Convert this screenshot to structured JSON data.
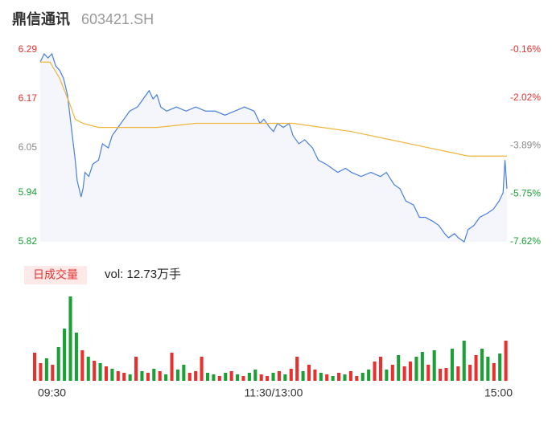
{
  "chart_data": {
    "type": "intraday",
    "title": "鼎信通讯",
    "subtitle": "603421.SH",
    "xlim": [
      0,
      240
    ],
    "xticks": [
      {
        "value": 0,
        "label": "09:30"
      },
      {
        "value": 120,
        "label": "11:30/13:00"
      },
      {
        "value": 240,
        "label": "15:00"
      }
    ],
    "ylim": [
      5.82,
      6.29
    ],
    "yticks": [
      6.29,
      6.17,
      6.05,
      5.94,
      5.82
    ],
    "y2lim": [
      -7.62,
      -0.16
    ],
    "y2ticks": [
      {
        "value": -0.16,
        "label": "-0.16%"
      },
      {
        "value": -2.02,
        "label": "-2.02%"
      },
      {
        "value": -3.89,
        "label": "-3.89%"
      },
      {
        "value": -5.75,
        "label": "-5.75%"
      },
      {
        "value": -7.62,
        "label": "-7.62%"
      }
    ],
    "series": [
      {
        "name": "price",
        "color": "#4a7fe0",
        "x": [
          0,
          2,
          4,
          6,
          8,
          10,
          12,
          14,
          16,
          18,
          19,
          20,
          21,
          22,
          23,
          25,
          27,
          30,
          32,
          35,
          37,
          40,
          43,
          46,
          50,
          53,
          56,
          58,
          60,
          62,
          65,
          70,
          75,
          80,
          85,
          90,
          95,
          100,
          105,
          110,
          113,
          115,
          118,
          120,
          122,
          125,
          128,
          130,
          133,
          136,
          140,
          143,
          147,
          150,
          153,
          157,
          160,
          165,
          170,
          175,
          178,
          182,
          185,
          188,
          192,
          195,
          198,
          202,
          205,
          208,
          210,
          213,
          215,
          218,
          220,
          223,
          226,
          230,
          233,
          236,
          238,
          239,
          240
        ],
        "values": [
          6.26,
          6.28,
          6.27,
          6.28,
          6.25,
          6.24,
          6.22,
          6.18,
          6.1,
          6.02,
          5.97,
          5.95,
          5.93,
          5.95,
          5.99,
          5.98,
          6.01,
          6.02,
          6.06,
          6.05,
          6.08,
          6.1,
          6.12,
          6.14,
          6.15,
          6.17,
          6.19,
          6.17,
          6.18,
          6.15,
          6.14,
          6.15,
          6.14,
          6.15,
          6.14,
          6.14,
          6.13,
          6.14,
          6.15,
          6.14,
          6.11,
          6.12,
          6.1,
          6.09,
          6.11,
          6.1,
          6.11,
          6.08,
          6.06,
          6.07,
          6.05,
          6.02,
          6.01,
          6.0,
          5.99,
          6.0,
          5.99,
          5.98,
          5.99,
          5.98,
          5.99,
          5.96,
          5.95,
          5.92,
          5.91,
          5.88,
          5.88,
          5.87,
          5.86,
          5.84,
          5.83,
          5.84,
          5.83,
          5.82,
          5.85,
          5.86,
          5.88,
          5.89,
          5.9,
          5.92,
          5.94,
          6.02,
          5.95
        ]
      },
      {
        "name": "average",
        "color": "#f0b53a",
        "x": [
          0,
          5,
          10,
          15,
          18,
          22,
          30,
          60,
          80,
          96,
          120,
          130,
          145,
          160,
          170,
          180,
          190,
          200,
          210,
          220,
          230,
          240
        ],
        "values": [
          6.26,
          6.26,
          6.22,
          6.16,
          6.12,
          6.11,
          6.1,
          6.1,
          6.11,
          6.11,
          6.11,
          6.11,
          6.1,
          6.09,
          6.08,
          6.07,
          6.06,
          6.05,
          6.04,
          6.03,
          6.03,
          6.03
        ]
      }
    ],
    "volume": {
      "label": "日成交量",
      "text": "vol: 12.73万手",
      "ylim": [
        0,
        110
      ],
      "up_color": "#e8312f",
      "down_color": "#1aa035",
      "values": [
        35,
        22,
        28,
        20,
        42,
        65,
        105,
        60,
        38,
        30,
        25,
        22,
        18,
        15,
        12,
        10,
        8,
        30,
        12,
        10,
        15,
        12,
        8,
        35,
        14,
        20,
        10,
        12,
        30,
        10,
        8,
        6,
        10,
        12,
        8,
        6,
        10,
        14,
        8,
        6,
        10,
        12,
        8,
        15,
        30,
        12,
        20,
        14,
        10,
        8,
        6,
        10,
        8,
        12,
        6,
        10,
        14,
        24,
        30,
        14,
        20,
        32,
        18,
        24,
        30,
        36,
        20,
        38,
        15,
        16,
        40,
        18,
        50,
        20,
        32,
        40,
        30,
        22,
        34,
        50
      ],
      "directions": [
        "up",
        "up",
        "down",
        "up",
        "down",
        "down",
        "down",
        "down",
        "up",
        "down",
        "up",
        "down",
        "up",
        "down",
        "up",
        "up",
        "down",
        "up",
        "down",
        "up",
        "down",
        "up",
        "down",
        "up",
        "down",
        "down",
        "up",
        "up",
        "up",
        "down",
        "down",
        "up",
        "down",
        "up",
        "down",
        "up",
        "down",
        "down",
        "up",
        "up",
        "down",
        "up",
        "down",
        "up",
        "up",
        "down",
        "up",
        "up",
        "down",
        "up",
        "down",
        "up",
        "down",
        "up",
        "up",
        "down",
        "down",
        "up",
        "up",
        "down",
        "up",
        "down",
        "up",
        "up",
        "down",
        "down",
        "up",
        "down",
        "up",
        "up",
        "down",
        "up",
        "down",
        "up",
        "up",
        "down",
        "down",
        "up",
        "down",
        "up"
      ]
    }
  }
}
